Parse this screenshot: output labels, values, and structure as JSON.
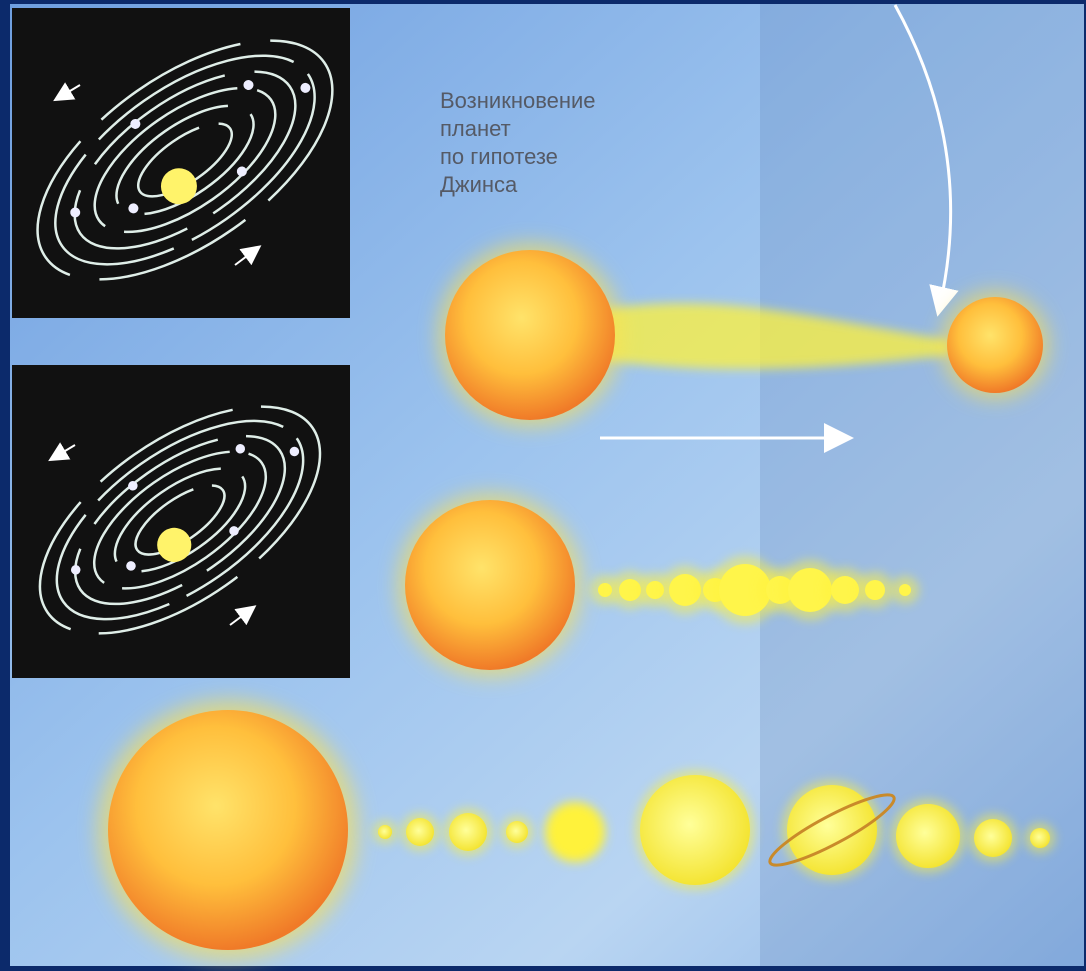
{
  "caption": {
    "lines": [
      "Возникновение",
      "планет",
      "по гипотезе",
      "Джинса"
    ]
  }
}
